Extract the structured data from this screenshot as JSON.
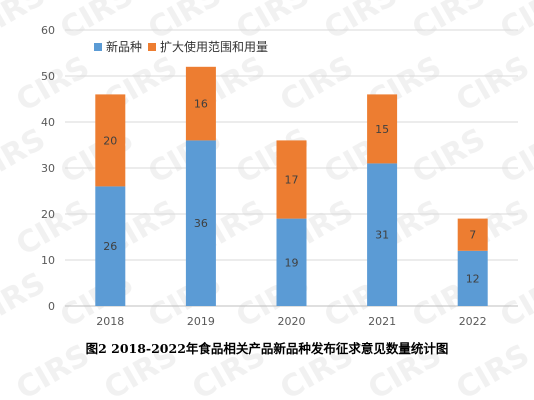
{
  "chart_data": {
    "type": "bar",
    "stacked": true,
    "title": "图2 2018-2022年食品相关产品新品种发布征求意见数量统计图",
    "categories": [
      "2018",
      "2019",
      "2020",
      "2021",
      "2022"
    ],
    "series": [
      {
        "name": "新品种",
        "color": "#5B9BD5",
        "values": [
          26,
          36,
          19,
          31,
          12
        ]
      },
      {
        "name": "扩大使用范围和用量",
        "color": "#ED7D31",
        "values": [
          20,
          16,
          17,
          15,
          7
        ]
      }
    ],
    "ylim": [
      0,
      60
    ],
    "yticks": [
      0,
      10,
      20,
      30,
      40,
      50,
      60
    ],
    "grid": true,
    "legend_position": "top-left",
    "watermark": "CIRS"
  }
}
